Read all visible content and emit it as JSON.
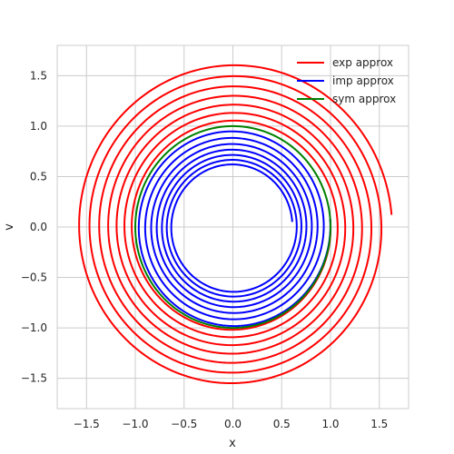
{
  "chart_data": {
    "type": "line",
    "title": "",
    "xlabel": "x",
    "ylabel": "v",
    "xlim": [
      -1.8,
      1.8
    ],
    "ylim": [
      -1.8,
      1.8
    ],
    "xticks": [
      -1.5,
      -1.0,
      -0.5,
      0.0,
      0.5,
      1.0,
      1.5
    ],
    "yticks": [
      -1.5,
      -1.0,
      -0.5,
      0.0,
      0.5,
      1.0,
      1.5
    ],
    "xtick_labels": [
      "−1.5",
      "−1.0",
      "−0.5",
      "0.0",
      "0.5",
      "1.0",
      "1.5"
    ],
    "ytick_labels": [
      "−1.5",
      "−1.0",
      "−0.5",
      "0.0",
      "0.5",
      "1.0",
      "1.5"
    ],
    "grid": true,
    "legend_position": "top-right",
    "series": [
      {
        "name": "exp approx",
        "color": "#ff0000",
        "spiral": "outward",
        "r_start": 1.0,
        "r_end": 1.63,
        "turns": 7.0,
        "end_point": [
          1.62,
          0.12
        ]
      },
      {
        "name": "imp approx",
        "color": "#0000ff",
        "spiral": "inward",
        "r_start": 1.0,
        "r_end": 0.61,
        "turns": 7.0,
        "end_point": [
          0.6,
          0.05
        ]
      },
      {
        "name": "sym approx",
        "color": "#008000",
        "spiral": "circle",
        "r_start": 1.0,
        "r_end": 1.0,
        "turns": 7.0,
        "end_point": [
          1.0,
          0.0
        ]
      }
    ]
  }
}
